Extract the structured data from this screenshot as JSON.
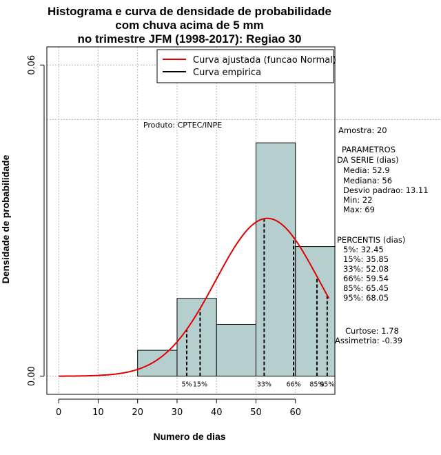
{
  "chart_data": {
    "type": "bar",
    "title_lines": [
      "Histograma e curva de densidade de probabilidade",
      "com chuva acima de 5 mm",
      "no trimestre JFM (1998-2017): Regiao 30"
    ],
    "xlabel": "Numero de dias",
    "ylabel": "Densidade de probabilidade",
    "xlim": [
      -3,
      70
    ],
    "ylim": [
      -0.0035,
      0.0635
    ],
    "x_ticks": [
      0,
      10,
      20,
      30,
      40,
      50,
      60
    ],
    "x_tick_labels": [
      "0",
      "10",
      "20",
      "30",
      "40",
      "50",
      "60"
    ],
    "y_ticks": [
      0.0,
      0.06
    ],
    "y_tick_labels": [
      "0.00",
      "0.06"
    ],
    "grid": true,
    "bins": [
      {
        "x0": 20,
        "x1": 30,
        "density": 0.005
      },
      {
        "x0": 30,
        "x1": 40,
        "density": 0.015
      },
      {
        "x0": 40,
        "x1": 50,
        "density": 0.01
      },
      {
        "x0": 50,
        "x1": 60,
        "density": 0.045
      },
      {
        "x0": 60,
        "x1": 70,
        "density": 0.025
      }
    ],
    "normal_fit": {
      "mean": 52.9,
      "sd": 13.11,
      "x_range": [
        0,
        68.5
      ]
    },
    "percentiles": [
      {
        "label": "5%",
        "value": 32.45
      },
      {
        "label": "15%",
        "value": 35.85
      },
      {
        "label": "33%",
        "value": 52.08
      },
      {
        "label": "66%",
        "value": 59.54
      },
      {
        "label": "85%",
        "value": 65.45
      },
      {
        "label": "95%",
        "value": 68.05
      }
    ],
    "legend": {
      "position": "top-right",
      "entries": [
        {
          "label": "Curva ajustada (funcao Normal)",
          "color": "#e00000"
        },
        {
          "label": "Curva empirica",
          "color": "#000000"
        }
      ]
    },
    "annotation": "Produto: CPTEC/INPE",
    "bar_color": "#b5cfcf",
    "curve_color": "#e00000"
  },
  "stats": {
    "amostra": "Amostra: 20",
    "param_title_1": "PARAMETROS",
    "param_title_2": "DA SERIE (dias)",
    "media": "Media: 52.9",
    "mediana": "Mediana: 56",
    "desvio": "Desvio padrao: 13.11",
    "min": "Min: 22",
    "max": "Max: 69",
    "percentis_title": "PERCENTIS (dias)",
    "p5": "5%: 32.45",
    "p15": "15%: 35.85",
    "p33": "33%: 52.08",
    "p66": "66%: 59.54",
    "p85": "85%: 65.45",
    "p95": "95%: 68.05",
    "curtose": "Curtose: 1.78",
    "assimetria": "Assimetria: -0.39"
  }
}
